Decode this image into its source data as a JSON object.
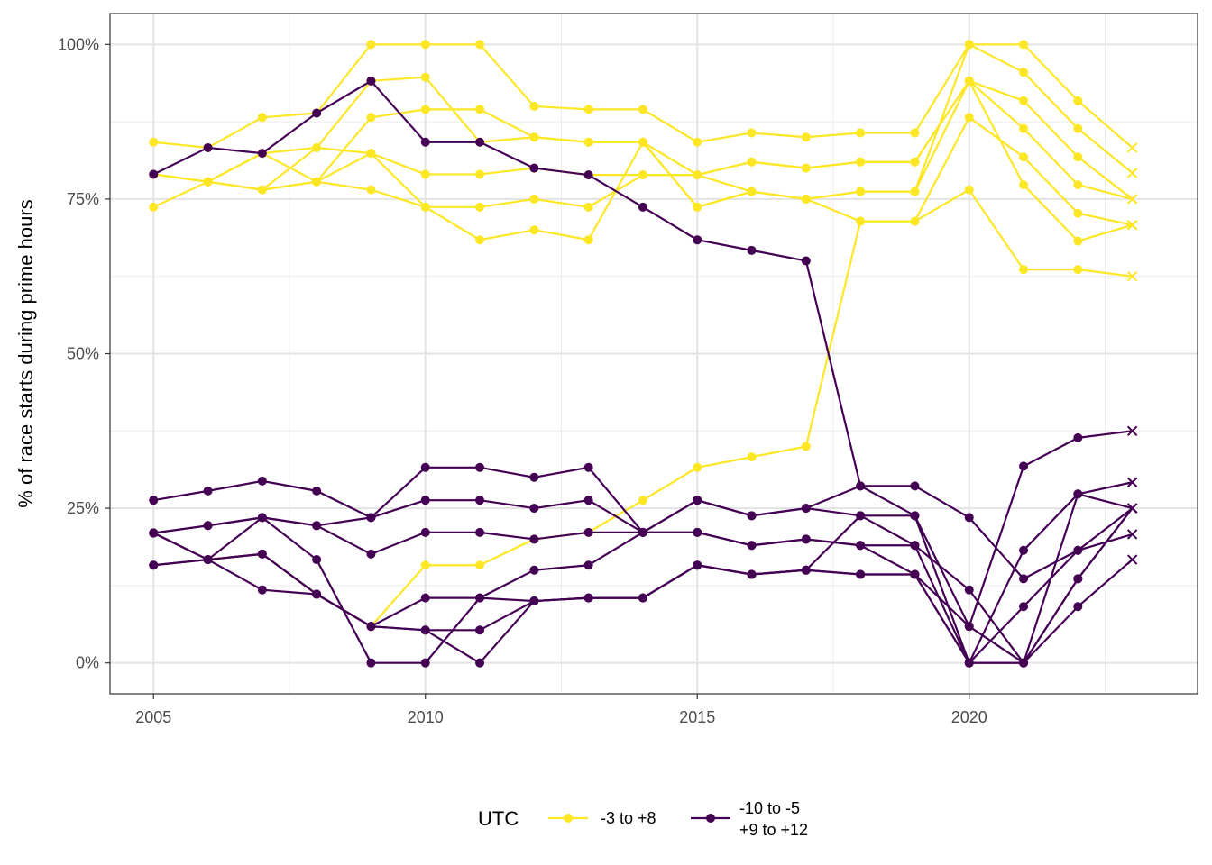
{
  "chart_data": {
    "type": "line",
    "title": "",
    "xlabel": "",
    "ylabel": "% of race starts during prime hours",
    "xlim": [
      2004.2,
      2024.2
    ],
    "ylim": [
      -5,
      105
    ],
    "x_ticks": [
      2005,
      2010,
      2015,
      2020
    ],
    "x_tick_labels": [
      "2005",
      "2010",
      "2015",
      "2020"
    ],
    "y_ticks": [
      0,
      25,
      50,
      75,
      100
    ],
    "y_tick_labels": [
      "0%",
      "25%",
      "50%",
      "75%",
      "100%"
    ],
    "grid": true,
    "x": [
      2005,
      2006,
      2007,
      2008,
      2009,
      2010,
      2011,
      2012,
      2013,
      2014,
      2015,
      2016,
      2017,
      2018,
      2019,
      2020,
      2021,
      2022,
      2023
    ],
    "last_point_marker": "cross",
    "legend": {
      "title": "UTC",
      "placement": "bottom",
      "entries": [
        {
          "label": "-3 to +8",
          "color": "#FDE725"
        },
        {
          "label_lines": [
            "-10 to -5",
            "+9 to +12"
          ],
          "color": "#440154"
        }
      ]
    },
    "series": [
      {
        "group": "-3 to +8",
        "color": "#FDE725",
        "values": [
          84.2,
          83.3,
          88.2,
          88.9,
          100,
          100,
          100,
          90,
          89.5,
          89.5,
          84.2,
          85.7,
          85,
          85.7,
          85.7,
          100,
          100,
          90.9,
          83.3
        ]
      },
      {
        "group": "-3 to +8",
        "color": "#FDE725",
        "values": [
          79,
          77.8,
          82.4,
          83.3,
          94.1,
          94.7,
          84.2,
          85,
          84.2,
          84.2,
          73.7,
          76.2,
          75,
          76.2,
          76.2,
          100,
          95.5,
          86.4,
          79.2
        ]
      },
      {
        "group": "-3 to +8",
        "color": "#FDE725",
        "values": [
          79,
          77.8,
          76.5,
          77.8,
          88.2,
          89.5,
          89.5,
          85,
          84.2,
          84.2,
          78.9,
          81,
          80,
          81,
          81,
          94.1,
          90.9,
          81.8,
          75
        ]
      },
      {
        "group": "-3 to +8",
        "color": "#FDE725",
        "values": [
          79,
          77.8,
          76.5,
          77.8,
          82.4,
          79,
          79,
          80,
          78.9,
          78.9,
          78.9,
          81,
          80,
          81,
          81,
          94.1,
          86.4,
          77.3,
          75
        ]
      },
      {
        "group": "-3 to +8",
        "color": "#FDE725",
        "values": [
          73.7,
          77.8,
          76.5,
          83.3,
          82.4,
          73.7,
          73.7,
          75,
          73.7,
          78.9,
          78.9,
          76.2,
          75,
          71.4,
          71.4,
          88.2,
          81.8,
          72.7,
          70.8
        ]
      },
      {
        "group": "-3 to +8",
        "color": "#FDE725",
        "values": [
          79,
          77.8,
          82.4,
          77.8,
          76.5,
          73.7,
          68.4,
          70,
          68.4,
          84.2,
          73.7,
          76.2,
          75,
          76.2,
          76.2,
          94.1,
          77.3,
          68.2,
          70.8
        ]
      },
      {
        "group": "-3 to +8",
        "color": "#FDE725",
        "values": [
          21,
          16.7,
          17.6,
          11.1,
          5.9,
          15.8,
          15.8,
          20,
          21.1,
          26.3,
          31.6,
          33.3,
          35,
          71.4,
          71.4,
          76.5,
          63.6,
          63.6,
          62.5
        ]
      },
      {
        "group": "-10 to -5 +9 to +12",
        "color": "#440154",
        "values": [
          79,
          83.3,
          82.4,
          88.9,
          94.1,
          84.2,
          84.2,
          80,
          78.9,
          73.7,
          68.4,
          66.7,
          65,
          28.6,
          28.6,
          23.5,
          13.6,
          18.2,
          25
        ]
      },
      {
        "group": "-10 to -5 +9 to +12",
        "color": "#440154",
        "values": [
          26.3,
          27.8,
          29.4,
          27.8,
          23.5,
          31.6,
          31.6,
          30,
          31.6,
          21.1,
          26.3,
          23.8,
          25,
          28.6,
          23.8,
          5.9,
          31.8,
          36.4,
          37.5
        ]
      },
      {
        "group": "-10 to -5 +9 to +12",
        "color": "#440154",
        "values": [
          21,
          22.2,
          23.5,
          22.2,
          23.5,
          26.3,
          26.3,
          25,
          26.3,
          21.1,
          26.3,
          23.8,
          25,
          23.8,
          23.8,
          0,
          18.2,
          27.3,
          29.2
        ]
      },
      {
        "group": "-10 to -5 +9 to +12",
        "color": "#440154",
        "values": [
          21,
          22.2,
          23.5,
          22.2,
          17.6,
          21.1,
          21.1,
          20,
          21.1,
          21.1,
          21.1,
          19,
          20,
          19,
          19,
          11.8,
          0,
          27.3,
          25
        ]
      },
      {
        "group": "-10 to -5 +9 to +12",
        "color": "#440154",
        "values": [
          15.8,
          16.7,
          23.5,
          16.7,
          0,
          0,
          10.5,
          10,
          10.5,
          10.5,
          15.8,
          14.3,
          15,
          23.8,
          19,
          0,
          9.1,
          18.2,
          20.8
        ]
      },
      {
        "group": "-10 to -5 +9 to +12",
        "color": "#440154",
        "values": [
          15.8,
          16.7,
          11.8,
          11.1,
          5.9,
          10.5,
          10.5,
          15,
          15.8,
          21.1,
          21.1,
          19,
          20,
          19,
          14.3,
          0,
          0,
          9.1,
          16.7
        ]
      },
      {
        "group": "-10 to -5 +9 to +12",
        "color": "#440154",
        "values": [
          21,
          16.7,
          17.6,
          11.1,
          5.9,
          5.3,
          5.3,
          10,
          10.5,
          10.5,
          15.8,
          14.3,
          15,
          14.3,
          14.3,
          5.9,
          0,
          13.6,
          25
        ]
      },
      {
        "group": "-10 to -5 +9 to +12",
        "color": "#440154",
        "values": [
          21,
          16.7,
          17.6,
          11.1,
          5.9,
          5.3,
          0,
          10,
          10.5,
          10.5,
          15.8,
          14.3,
          15,
          14.3,
          14.3,
          0,
          0,
          13.6,
          25
        ]
      }
    ]
  }
}
